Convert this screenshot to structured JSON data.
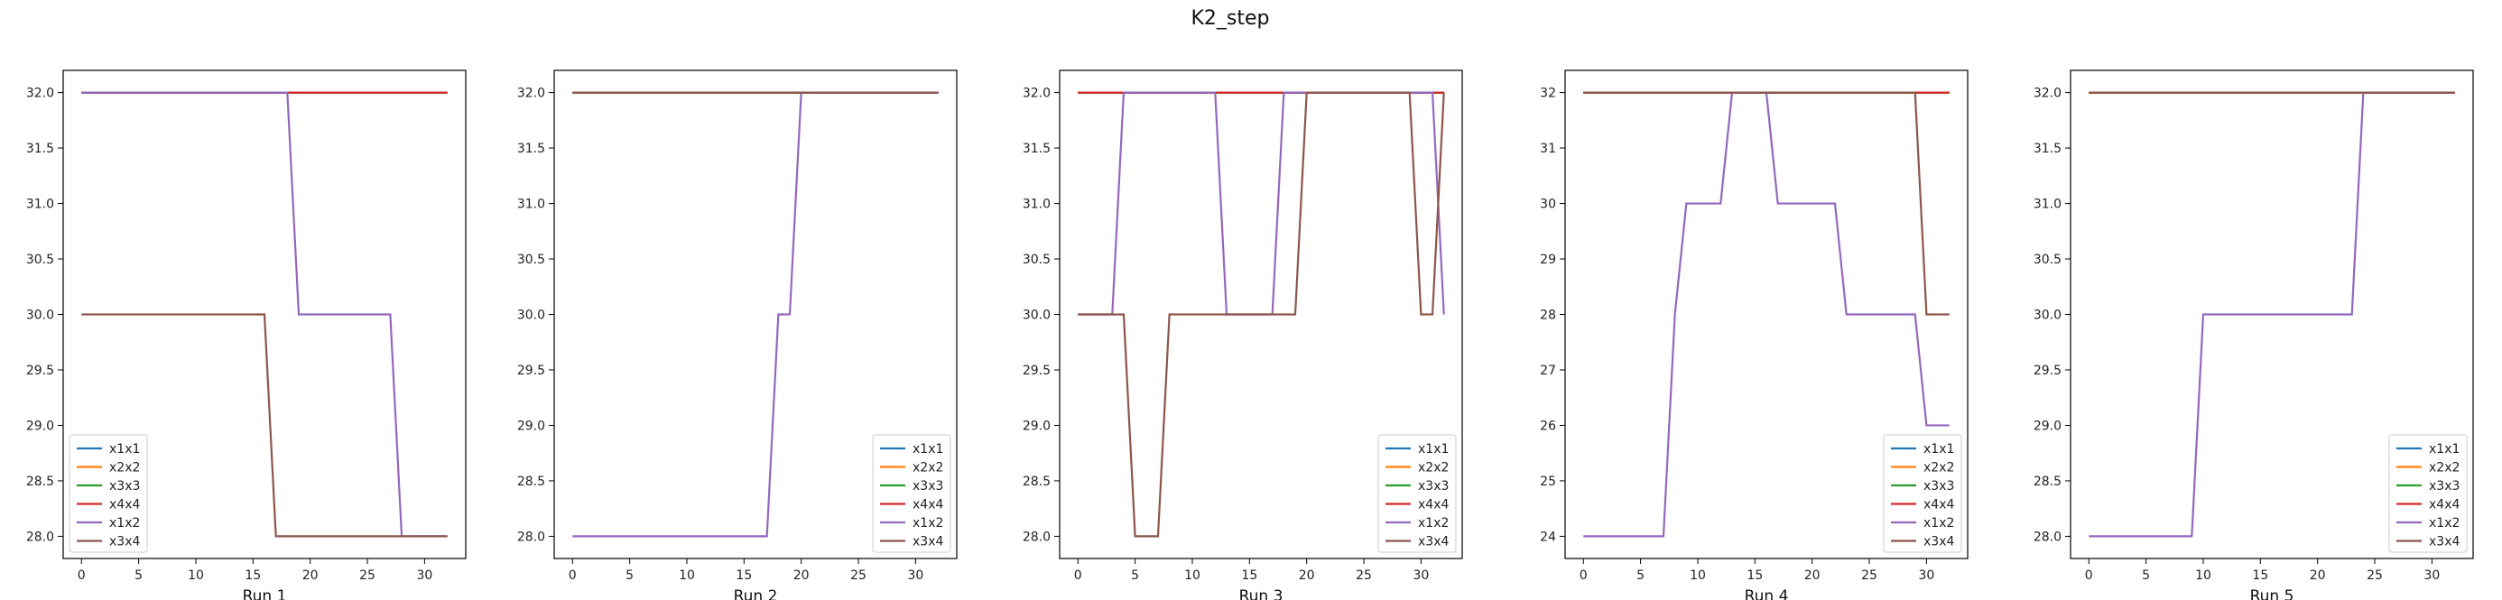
{
  "figure": {
    "title": "K2_step"
  },
  "chart_data": [
    {
      "type": "line",
      "xlabel": "Run 1",
      "xlim": [
        -1.6,
        33.6
      ],
      "ylim": [
        27.8,
        32.2
      ],
      "xticks": [
        0,
        5,
        10,
        15,
        20,
        25,
        30
      ],
      "yticks": [
        "28.0",
        "28.5",
        "29.0",
        "29.5",
        "30.0",
        "30.5",
        "31.0",
        "31.5",
        "32.0"
      ],
      "legend": "lower-left",
      "series": [
        {
          "name": "x1x1",
          "color": "#1f77b4",
          "points": [
            [
              0,
              32
            ],
            [
              32,
              32
            ]
          ]
        },
        {
          "name": "x2x2",
          "color": "#ff7f0e",
          "points": [
            [
              0,
              32
            ],
            [
              32,
              32
            ]
          ]
        },
        {
          "name": "x3x3",
          "color": "#2ca02c",
          "points": [
            [
              0,
              32
            ],
            [
              32,
              32
            ]
          ]
        },
        {
          "name": "x4x4",
          "color": "#d62728",
          "points": [
            [
              0,
              32
            ],
            [
              32,
              32
            ]
          ]
        },
        {
          "name": "x1x2",
          "color": "#9467bd",
          "points": [
            [
              0,
              32
            ],
            [
              18,
              32
            ],
            [
              19,
              30
            ],
            [
              27,
              30
            ],
            [
              28,
              28
            ],
            [
              32,
              28
            ]
          ]
        },
        {
          "name": "x3x4",
          "color": "#8c564b",
          "points": [
            [
              0,
              30
            ],
            [
              16,
              30
            ],
            [
              17,
              28
            ],
            [
              32,
              28
            ]
          ]
        }
      ]
    },
    {
      "type": "line",
      "xlabel": "Run 2",
      "xlim": [
        -1.6,
        33.6
      ],
      "ylim": [
        27.8,
        32.2
      ],
      "xticks": [
        0,
        5,
        10,
        15,
        20,
        25,
        30
      ],
      "yticks": [
        "28.0",
        "28.5",
        "29.0",
        "29.5",
        "30.0",
        "30.5",
        "31.0",
        "31.5",
        "32.0"
      ],
      "legend": "lower-right",
      "series": [
        {
          "name": "x1x1",
          "color": "#1f77b4",
          "points": [
            [
              0,
              32
            ],
            [
              32,
              32
            ]
          ]
        },
        {
          "name": "x2x2",
          "color": "#ff7f0e",
          "points": [
            [
              0,
              32
            ],
            [
              32,
              32
            ]
          ]
        },
        {
          "name": "x3x3",
          "color": "#2ca02c",
          "points": [
            [
              0,
              32
            ],
            [
              32,
              32
            ]
          ]
        },
        {
          "name": "x4x4",
          "color": "#d62728",
          "points": [
            [
              0,
              32
            ],
            [
              32,
              32
            ]
          ]
        },
        {
          "name": "x1x2",
          "color": "#9467bd",
          "points": [
            [
              0,
              28
            ],
            [
              17,
              28
            ],
            [
              18,
              30
            ],
            [
              19,
              30
            ],
            [
              20,
              32
            ],
            [
              32,
              32
            ]
          ]
        },
        {
          "name": "x3x4",
          "color": "#8c564b",
          "points": [
            [
              0,
              32
            ],
            [
              32,
              32
            ]
          ]
        }
      ]
    },
    {
      "type": "line",
      "xlabel": "Run 3",
      "xlim": [
        -1.6,
        33.6
      ],
      "ylim": [
        27.8,
        32.2
      ],
      "xticks": [
        0,
        5,
        10,
        15,
        20,
        25,
        30
      ],
      "yticks": [
        "28.0",
        "28.5",
        "29.0",
        "29.5",
        "30.0",
        "30.5",
        "31.0",
        "31.5",
        "32.0"
      ],
      "legend": "lower-right",
      "series": [
        {
          "name": "x1x1",
          "color": "#1f77b4",
          "points": [
            [
              0,
              32
            ],
            [
              32,
              32
            ]
          ]
        },
        {
          "name": "x2x2",
          "color": "#ff7f0e",
          "points": [
            [
              0,
              32
            ],
            [
              32,
              32
            ]
          ]
        },
        {
          "name": "x3x3",
          "color": "#2ca02c",
          "points": [
            [
              0,
              32
            ],
            [
              32,
              32
            ]
          ]
        },
        {
          "name": "x4x4",
          "color": "#d62728",
          "points": [
            [
              0,
              32
            ],
            [
              32,
              32
            ]
          ]
        },
        {
          "name": "x1x2",
          "color": "#9467bd",
          "points": [
            [
              0,
              30
            ],
            [
              3,
              30
            ],
            [
              4,
              32
            ],
            [
              12,
              32
            ],
            [
              13,
              30
            ],
            [
              17,
              30
            ],
            [
              18,
              32
            ],
            [
              31,
              32
            ],
            [
              32,
              30
            ]
          ]
        },
        {
          "name": "x3x4",
          "color": "#8c564b",
          "points": [
            [
              0,
              30
            ],
            [
              4,
              30
            ],
            [
              5,
              28
            ],
            [
              7,
              28
            ],
            [
              8,
              30
            ],
            [
              19,
              30
            ],
            [
              20,
              32
            ],
            [
              29,
              32
            ],
            [
              30,
              30
            ],
            [
              31,
              30
            ],
            [
              32,
              32
            ]
          ]
        }
      ]
    },
    {
      "type": "line",
      "xlabel": "Run 4",
      "xlim": [
        -1.6,
        33.6
      ],
      "ylim": [
        23.6,
        32.4
      ],
      "xticks": [
        0,
        5,
        10,
        15,
        20,
        25,
        30
      ],
      "yticks": [
        "24",
        "25",
        "26",
        "27",
        "28",
        "29",
        "30",
        "31",
        "32"
      ],
      "legend": "lower-right",
      "series": [
        {
          "name": "x1x1",
          "color": "#1f77b4",
          "points": [
            [
              0,
              32
            ],
            [
              32,
              32
            ]
          ]
        },
        {
          "name": "x2x2",
          "color": "#ff7f0e",
          "points": [
            [
              0,
              32
            ],
            [
              32,
              32
            ]
          ]
        },
        {
          "name": "x3x3",
          "color": "#2ca02c",
          "points": [
            [
              0,
              32
            ],
            [
              32,
              32
            ]
          ]
        },
        {
          "name": "x4x4",
          "color": "#d62728",
          "points": [
            [
              0,
              32
            ],
            [
              32,
              32
            ]
          ]
        },
        {
          "name": "x1x2",
          "color": "#9467bd",
          "points": [
            [
              0,
              24
            ],
            [
              7,
              24
            ],
            [
              8,
              28
            ],
            [
              9,
              30
            ],
            [
              12,
              30
            ],
            [
              13,
              32
            ],
            [
              16,
              32
            ],
            [
              17,
              30
            ],
            [
              22,
              30
            ],
            [
              23,
              28
            ],
            [
              29,
              28
            ],
            [
              30,
              26
            ],
            [
              32,
              26
            ]
          ]
        },
        {
          "name": "x3x4",
          "color": "#8c564b",
          "points": [
            [
              0,
              32
            ],
            [
              29,
              32
            ],
            [
              30,
              28
            ],
            [
              32,
              28
            ]
          ]
        }
      ]
    },
    {
      "type": "line",
      "xlabel": "Run 5",
      "xlim": [
        -1.6,
        33.6
      ],
      "ylim": [
        27.8,
        32.2
      ],
      "xticks": [
        0,
        5,
        10,
        15,
        20,
        25,
        30
      ],
      "yticks": [
        "28.0",
        "28.5",
        "29.0",
        "29.5",
        "30.0",
        "30.5",
        "31.0",
        "31.5",
        "32.0"
      ],
      "legend": "lower-right",
      "series": [
        {
          "name": "x1x1",
          "color": "#1f77b4",
          "points": [
            [
              0,
              32
            ],
            [
              32,
              32
            ]
          ]
        },
        {
          "name": "x2x2",
          "color": "#ff7f0e",
          "points": [
            [
              0,
              32
            ],
            [
              32,
              32
            ]
          ]
        },
        {
          "name": "x3x3",
          "color": "#2ca02c",
          "points": [
            [
              0,
              32
            ],
            [
              32,
              32
            ]
          ]
        },
        {
          "name": "x4x4",
          "color": "#d62728",
          "points": [
            [
              0,
              32
            ],
            [
              32,
              32
            ]
          ]
        },
        {
          "name": "x1x2",
          "color": "#9467bd",
          "points": [
            [
              0,
              28
            ],
            [
              9,
              28
            ],
            [
              10,
              30
            ],
            [
              23,
              30
            ],
            [
              24,
              32
            ],
            [
              32,
              32
            ]
          ]
        },
        {
          "name": "x3x4",
          "color": "#8c564b",
          "points": [
            [
              0,
              32
            ],
            [
              32,
              32
            ]
          ]
        }
      ]
    }
  ]
}
